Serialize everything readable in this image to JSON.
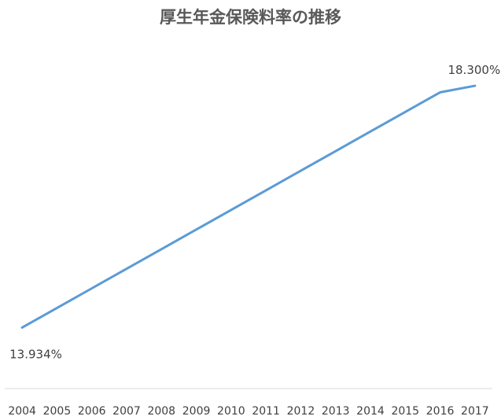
{
  "chart_data": {
    "type": "line",
    "title": "厚生年金保険料率の推移",
    "xlabel": "",
    "ylabel": "",
    "categories": [
      "2004",
      "2005",
      "2006",
      "2007",
      "2008",
      "2009",
      "2010",
      "2011",
      "2012",
      "2013",
      "2014",
      "2015",
      "2016",
      "2017"
    ],
    "series": [
      {
        "values": [
          13.934,
          14.288,
          14.642,
          14.996,
          15.35,
          15.704,
          16.058,
          16.412,
          16.766,
          17.12,
          17.474,
          17.828,
          18.182,
          18.3
        ],
        "color": "#5B9BD5"
      }
    ],
    "data_labels": [
      {
        "index": 0,
        "text": "13.934%"
      },
      {
        "index": 13,
        "text": "18.300%"
      }
    ],
    "ylim": [
      13.6,
      18.5
    ],
    "grid": false,
    "legend": "none",
    "axis_color": "#d9d9d9"
  }
}
